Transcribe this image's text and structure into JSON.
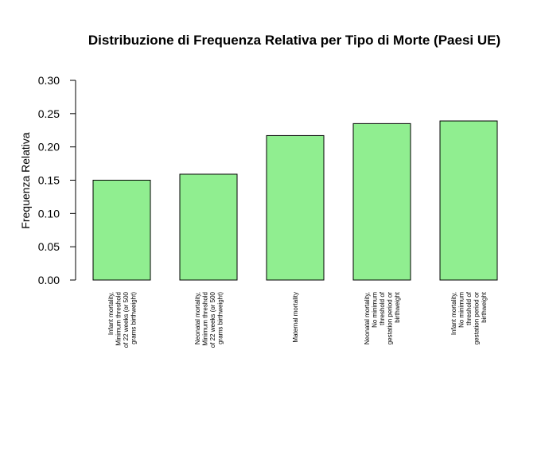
{
  "chart_data": {
    "type": "bar",
    "title": "Distribuzione di Frequenza Relativa per Tipo di Morte (Paesi UE)",
    "xlabel": "",
    "ylabel": "Frequenza Relativa",
    "ylim": [
      0,
      0.3
    ],
    "yticks": [
      "0.00",
      "0.05",
      "0.10",
      "0.15",
      "0.20",
      "0.25",
      "0.30"
    ],
    "bar_color": "#90EE90",
    "categories": [
      [
        "Infant mortality,",
        "Minimum threshold",
        "of 22 weeks (or 500",
        "grams birthweight)"
      ],
      [
        "Neonatal mortality,",
        "Minimum threshold",
        "of 22 weeks (or 500",
        "grams birthweight)"
      ],
      [
        "Maternal mortality"
      ],
      [
        "Neonatal mortality,",
        "No minimum",
        "threshold of",
        "gestation period or",
        "birthweight"
      ],
      [
        "Infant mortality,",
        "No minimum",
        "threshold of",
        "gestation period or",
        "birthweight"
      ]
    ],
    "values": [
      0.15,
      0.159,
      0.217,
      0.235,
      0.239
    ]
  }
}
